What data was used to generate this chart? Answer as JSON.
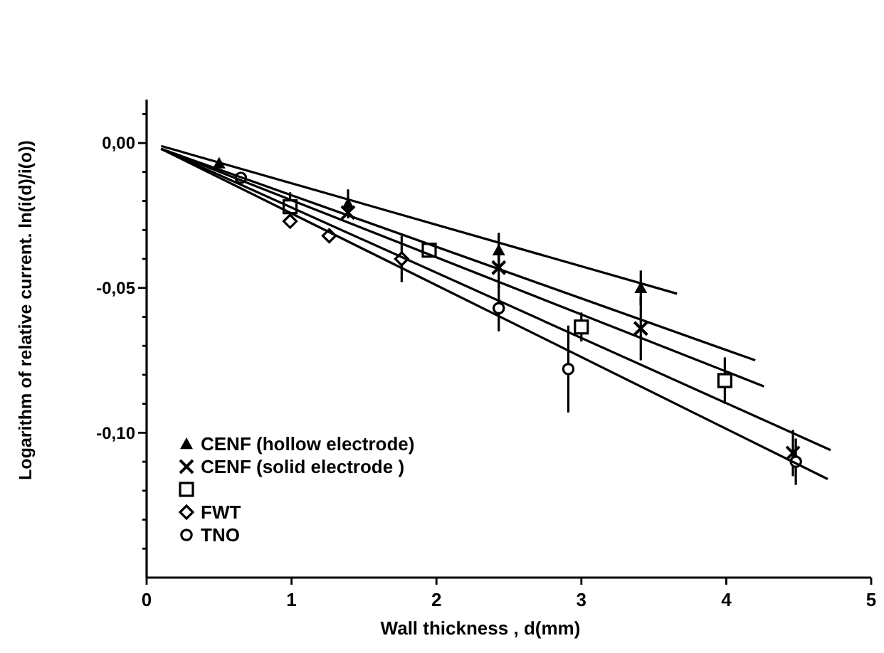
{
  "chart_data": {
    "type": "scatter",
    "xlabel": "Wall thickness , d(mm)",
    "ylabel": "Logarithm of relative current. ln(i(d)/i(o))",
    "xlim": [
      0,
      5
    ],
    "ylim": [
      -0.15,
      0.015
    ],
    "xticks": [
      0,
      1,
      2,
      3,
      4,
      5
    ],
    "yticks": [
      {
        "value": 0.01,
        "label": null
      },
      {
        "value": 0,
        "label": "0,00"
      },
      {
        "value": -0.01,
        "label": null
      },
      {
        "value": -0.02,
        "label": null
      },
      {
        "value": -0.03,
        "label": null
      },
      {
        "value": -0.04,
        "label": null
      },
      {
        "value": -0.05,
        "label": "-0,05"
      },
      {
        "value": -0.06,
        "label": null
      },
      {
        "value": -0.07,
        "label": null
      },
      {
        "value": -0.08,
        "label": null
      },
      {
        "value": -0.09,
        "label": null
      },
      {
        "value": -0.1,
        "label": "-0,10"
      },
      {
        "value": -0.11,
        "label": null
      },
      {
        "value": -0.12,
        "label": null
      },
      {
        "value": -0.13,
        "label": null
      },
      {
        "value": -0.14,
        "label": null
      }
    ],
    "grid": false,
    "legend": "bottom left",
    "series": [
      {
        "name": "CENF (hollow electrode)",
        "color": "#000000",
        "marker": "triangle",
        "x": [
          0.5,
          1.39,
          2.43,
          3.41
        ],
        "values": [
          -0.007,
          -0.021,
          -0.037,
          -0.05
        ],
        "errors": [
          null,
          0.005,
          0.006,
          0.006
        ]
      },
      {
        "name": "CENF (solid electrode )",
        "color": "#000000",
        "marker": "cross",
        "x": [
          1.39,
          2.43,
          3.41,
          4.46
        ],
        "values": [
          -0.024,
          -0.043,
          -0.064,
          -0.107
        ],
        "errors": [
          null,
          0.007,
          0.011,
          0.008
        ]
      },
      {
        "color": "#000000",
        "marker": "square",
        "x": [
          0.99,
          1.95,
          3.0,
          3.99
        ],
        "values": [
          -0.022,
          -0.037,
          -0.0635,
          -0.082
        ],
        "errors": [
          0.005,
          null,
          0.005,
          0.008
        ]
      },
      {
        "name": "FWT",
        "color": "#000000",
        "marker": "diamond",
        "x": [
          0.99,
          1.26,
          1.76
        ],
        "values": [
          -0.027,
          -0.032,
          -0.04
        ],
        "errors": [
          null,
          null,
          0.008
        ]
      },
      {
        "name": "TNO",
        "color": "#000000",
        "marker": "circle",
        "x": [
          0.65,
          2.43,
          2.91,
          4.48
        ],
        "values": [
          -0.012,
          -0.057,
          -0.078,
          -0.11
        ],
        "errors": [
          null,
          0.008,
          0.015,
          0.008
        ]
      },
      {
        "type": "line",
        "color": "#000000",
        "x": [
          0.1,
          3.66
        ],
        "values": [
          -0.001,
          -0.052
        ]
      },
      {
        "type": "line",
        "color": "#000000",
        "x": [
          0.1,
          4.2
        ],
        "values": [
          -0.002,
          -0.075
        ]
      },
      {
        "type": "line",
        "color": "#000000",
        "x": [
          0.1,
          4.26
        ],
        "values": [
          -0.002,
          -0.084
        ]
      },
      {
        "type": "line",
        "color": "#000000",
        "x": [
          0.1,
          4.72
        ],
        "values": [
          -0.002,
          -0.106
        ]
      },
      {
        "type": "line",
        "color": "#000000",
        "x": [
          0.1,
          4.7
        ],
        "values": [
          -0.002,
          -0.116
        ]
      }
    ]
  }
}
